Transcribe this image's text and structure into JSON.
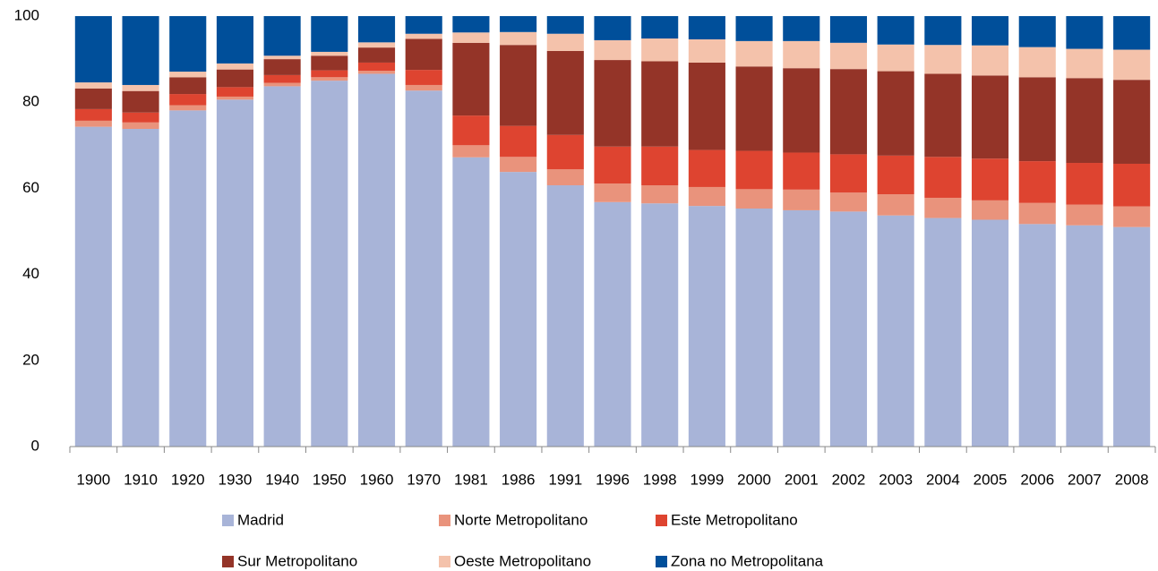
{
  "chart_data": {
    "type": "stacked_bar",
    "categories": [
      "1900",
      "1910",
      "1920",
      "1930",
      "1940",
      "1950",
      "1960",
      "1970",
      "1981",
      "1986",
      "1991",
      "1996",
      "1998",
      "1999",
      "2000",
      "2001",
      "2002",
      "2003",
      "2004",
      "2005",
      "2006",
      "2007",
      "2008"
    ],
    "series": [
      {
        "name": "Madrid",
        "color": "#a8b4d8",
        "values": [
          74.3,
          73.8,
          78.1,
          80.6,
          83.7,
          85.0,
          86.6,
          82.7,
          67.2,
          63.8,
          60.7,
          56.8,
          56.5,
          55.9,
          55.3,
          54.9,
          54.6,
          53.7,
          53.1,
          52.7,
          51.7,
          51.4,
          51.0
        ]
      },
      {
        "name": "Norte Metropolitano",
        "color": "#e9937c",
        "values": [
          1.4,
          1.5,
          1.2,
          0.7,
          0.8,
          0.8,
          0.7,
          1.3,
          2.8,
          3.5,
          3.7,
          4.3,
          4.2,
          4.4,
          4.5,
          4.8,
          4.4,
          4.9,
          4.7,
          4.5,
          4.9,
          4.8,
          4.8
        ]
      },
      {
        "name": "Este Metropolitano",
        "color": "#de4430",
        "values": [
          2.7,
          2.3,
          2.6,
          2.2,
          1.8,
          1.6,
          1.9,
          3.5,
          6.9,
          7.2,
          8.0,
          8.6,
          9.0,
          8.6,
          8.9,
          8.6,
          8.9,
          9.0,
          9.5,
          9.7,
          9.7,
          9.7,
          9.9
        ]
      },
      {
        "name": "Sur Metropolitano",
        "color": "#943428",
        "values": [
          4.8,
          5.0,
          3.9,
          4.1,
          3.7,
          3.4,
          3.5,
          7.2,
          16.9,
          18.8,
          19.5,
          20.1,
          19.8,
          20.3,
          19.6,
          19.6,
          19.8,
          19.6,
          19.3,
          19.3,
          19.5,
          19.7,
          19.5
        ]
      },
      {
        "name": "Oeste Metropolitano",
        "color": "#f4c2ab",
        "values": [
          1.4,
          1.4,
          1.3,
          1.4,
          0.8,
          0.9,
          1.2,
          1.2,
          2.4,
          3.0,
          4.0,
          4.6,
          5.3,
          5.4,
          5.9,
          6.3,
          6.1,
          6.2,
          6.7,
          7.0,
          7.0,
          6.8,
          7.0
        ]
      },
      {
        "name": "Zona no Metropolitana",
        "color": "#004f9a",
        "values": [
          15.4,
          16.0,
          12.9,
          11.0,
          9.2,
          8.3,
          6.1,
          4.1,
          3.8,
          3.7,
          4.1,
          5.6,
          5.2,
          5.4,
          5.8,
          5.8,
          6.2,
          6.6,
          6.7,
          6.8,
          7.2,
          7.6,
          7.8
        ]
      }
    ],
    "ylim": [
      0,
      100
    ],
    "yticks": [
      0,
      20,
      40,
      60,
      80,
      100
    ],
    "grid": false
  }
}
